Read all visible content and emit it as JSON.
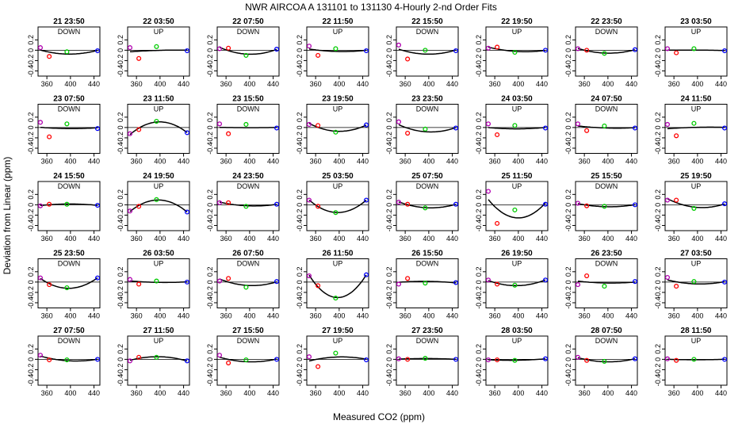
{
  "chart_data": {
    "type": "scatter",
    "title": "NWR   AIRCOA A   131101 to 131130   4-Hourly 2-nd Order Fits",
    "xlabel": "Measured CO2 (ppm)",
    "ylabel": "Deviation from Linear (ppm)",
    "xlim": [
      345,
      450
    ],
    "ylim": [
      -0.5,
      0.45
    ],
    "x_ticks": [
      360,
      400,
      440
    ],
    "y_ticks": [
      -0.4,
      -0.2,
      0,
      0.2
    ],
    "x_tick_labels": [
      "360",
      "400",
      "440"
    ],
    "y_tick_labels": [
      "-0.4",
      "-0.2",
      "0",
      "0.2"
    ],
    "grid": false,
    "point_x": [
      349,
      364,
      394,
      446
    ],
    "point_colors": [
      "#b000b0",
      "#ff0000",
      "#00cc00",
      "#0000ff"
    ],
    "panels": [
      {
        "title": "21 23:50",
        "dir": "DOWN",
        "y": [
          0.05,
          -0.12,
          -0.03,
          -0.01
        ]
      },
      {
        "title": "22 03:50",
        "dir": "UP",
        "y": [
          0.05,
          -0.16,
          0.07,
          -0.01
        ]
      },
      {
        "title": "22 07:50",
        "dir": "DOWN",
        "y": [
          0.03,
          0.04,
          -0.1,
          0.02
        ]
      },
      {
        "title": "22 11:50",
        "dir": "UP",
        "y": [
          0.08,
          -0.1,
          0.03,
          -0.01
        ]
      },
      {
        "title": "22 15:50",
        "dir": "DOWN",
        "y": [
          0.1,
          -0.17,
          0.0,
          -0.01
        ]
      },
      {
        "title": "22 19:50",
        "dir": "UP",
        "y": [
          0.04,
          0.06,
          -0.04,
          0.0
        ]
      },
      {
        "title": "22 23:50",
        "dir": "DOWN",
        "y": [
          0.03,
          0.0,
          -0.06,
          0.01
        ]
      },
      {
        "title": "23 03:50",
        "dir": "UP",
        "y": [
          0.03,
          -0.05,
          0.03,
          -0.01
        ]
      },
      {
        "title": "23 07:50",
        "dir": "DOWN",
        "y": [
          0.1,
          -0.18,
          0.07,
          -0.02
        ]
      },
      {
        "title": "23 11:50",
        "dir": "UP",
        "y": [
          -0.12,
          -0.04,
          0.12,
          -0.1
        ]
      },
      {
        "title": "23 15:50",
        "dir": "DOWN",
        "y": [
          0.07,
          -0.12,
          0.06,
          -0.01
        ]
      },
      {
        "title": "23 19:50",
        "dir": "UP",
        "y": [
          0.06,
          0.04,
          -0.09,
          0.05
        ]
      },
      {
        "title": "23 23:50",
        "dir": "DOWN",
        "y": [
          0.11,
          -0.11,
          -0.03,
          -0.01
        ]
      },
      {
        "title": "24 03:50",
        "dir": "UP",
        "y": [
          0.07,
          -0.14,
          0.04,
          -0.01
        ]
      },
      {
        "title": "24 07:50",
        "dir": "DOWN",
        "y": [
          0.07,
          -0.06,
          0.03,
          -0.01
        ]
      },
      {
        "title": "24 11:50",
        "dir": "UP",
        "y": [
          0.06,
          -0.16,
          0.08,
          -0.01
        ]
      },
      {
        "title": "24 15:50",
        "dir": "DOWN",
        "y": [
          -0.02,
          0.01,
          0.01,
          -0.01
        ]
      },
      {
        "title": "24 19:50",
        "dir": "UP",
        "y": [
          -0.12,
          -0.03,
          0.1,
          -0.14
        ]
      },
      {
        "title": "24 23:50",
        "dir": "DOWN",
        "y": [
          0.04,
          0.04,
          -0.03,
          0.01
        ]
      },
      {
        "title": "25 03:50",
        "dir": "UP",
        "y": [
          0.09,
          -0.03,
          -0.15,
          0.09
        ]
      },
      {
        "title": "25 07:50",
        "dir": "DOWN",
        "y": [
          0.05,
          0.01,
          -0.06,
          0.01
        ]
      },
      {
        "title": "25 11:50",
        "dir": "UP",
        "y": [
          0.26,
          -0.36,
          -0.1,
          0.01
        ]
      },
      {
        "title": "25 15:50",
        "dir": "DOWN",
        "y": [
          0.03,
          -0.02,
          -0.03,
          0.0
        ]
      },
      {
        "title": "25 19:50",
        "dir": "UP",
        "y": [
          0.09,
          0.09,
          -0.07,
          0.02
        ]
      },
      {
        "title": "25 23:50",
        "dir": "DOWN",
        "y": [
          0.08,
          -0.05,
          -0.11,
          0.08
        ]
      },
      {
        "title": "26 03:50",
        "dir": "UP",
        "y": [
          0.05,
          -0.04,
          0.02,
          0.0
        ]
      },
      {
        "title": "26 07:50",
        "dir": "DOWN",
        "y": [
          0.02,
          0.07,
          -0.1,
          0.01
        ]
      },
      {
        "title": "26 11:50",
        "dir": "UP",
        "y": [
          0.12,
          -0.07,
          -0.31,
          0.14
        ]
      },
      {
        "title": "26 15:50",
        "dir": "DOWN",
        "y": [
          -0.04,
          0.07,
          -0.02,
          -0.01
        ]
      },
      {
        "title": "26 19:50",
        "dir": "UP",
        "y": [
          0.04,
          -0.04,
          -0.06,
          0.04
        ]
      },
      {
        "title": "26 23:50",
        "dir": "DOWN",
        "y": [
          -0.05,
          0.12,
          -0.08,
          0.01
        ]
      },
      {
        "title": "27 03:50",
        "dir": "UP",
        "y": [
          0.09,
          -0.08,
          0.01,
          0.0
        ]
      },
      {
        "title": "27 07:50",
        "dir": "DOWN",
        "y": [
          0.08,
          -0.01,
          -0.01,
          0.0
        ]
      },
      {
        "title": "27 11:50",
        "dir": "UP",
        "y": [
          -0.03,
          0.04,
          0.04,
          -0.03
        ]
      },
      {
        "title": "27 15:50",
        "dir": "DOWN",
        "y": [
          0.08,
          -0.07,
          -0.01,
          0.0
        ]
      },
      {
        "title": "27 19:50",
        "dir": "UP",
        "y": [
          0.05,
          -0.14,
          0.12,
          -0.01
        ]
      },
      {
        "title": "27 23:50",
        "dir": "DOWN",
        "y": [
          0.01,
          0.0,
          0.02,
          0.0
        ]
      },
      {
        "title": "28 03:50",
        "dir": "UP",
        "y": [
          -0.01,
          -0.01,
          -0.02,
          0.01
        ]
      },
      {
        "title": "28 07:50",
        "dir": "DOWN",
        "y": [
          0.04,
          -0.02,
          -0.04,
          0.01
        ]
      },
      {
        "title": "28 11:50",
        "dir": "UP",
        "y": [
          0.01,
          -0.02,
          0.0,
          0.0
        ]
      }
    ]
  }
}
